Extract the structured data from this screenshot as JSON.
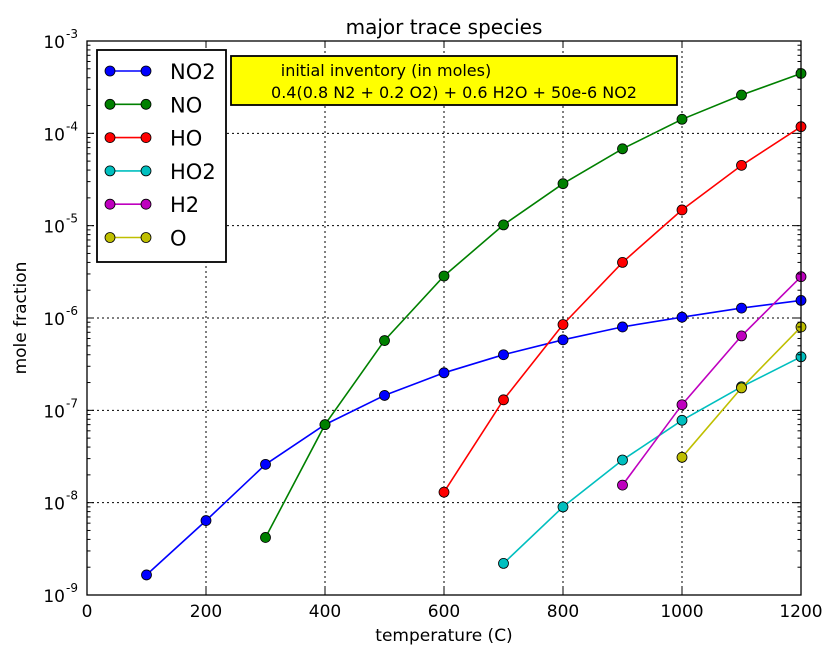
{
  "chart_data": {
    "type": "line",
    "title": "major trace species",
    "xlabel": "temperature (C)",
    "ylabel": "mole fraction",
    "xlim": [
      0,
      1200
    ],
    "ylim": [
      1e-09,
      0.001
    ],
    "yscale": "log",
    "grid": true,
    "legend_position": "top-left",
    "x_ticks": [
      0,
      200,
      400,
      600,
      800,
      1000,
      1200
    ],
    "x_tick_labels": [
      "0",
      "200",
      "400",
      "600",
      "800",
      "1000",
      "1200"
    ],
    "y_ticks": [
      1e-09,
      1e-08,
      1e-07,
      1e-06,
      1e-05,
      0.0001,
      0.001
    ],
    "y_tick_labels": [
      {
        "base": "10",
        "exp": "-9"
      },
      {
        "base": "10",
        "exp": "-8"
      },
      {
        "base": "10",
        "exp": "-7"
      },
      {
        "base": "10",
        "exp": "-6"
      },
      {
        "base": "10",
        "exp": "-5"
      },
      {
        "base": "10",
        "exp": "-4"
      },
      {
        "base": "10",
        "exp": "-3"
      }
    ],
    "annotation": {
      "lines": [
        "initial inventory (in moles)",
        "0.4(0.8 N2 + 0.2 O2) + 0.6 H2O + 50e-6 NO2"
      ],
      "background": "#ffff00"
    },
    "series": [
      {
        "name": "NO2",
        "color": "#0000ff",
        "x": [
          100,
          200,
          300,
          400,
          500,
          600,
          700,
          800,
          900,
          1000,
          1100,
          1200
        ],
        "y": [
          1.65e-09,
          6.4e-09,
          2.6e-08,
          7e-08,
          1.45e-07,
          2.55e-07,
          4e-07,
          5.8e-07,
          8e-07,
          1.02e-06,
          1.28e-06,
          1.55e-06
        ]
      },
      {
        "name": "NO",
        "color": "#008000",
        "x": [
          300,
          400,
          500,
          600,
          700,
          800,
          900,
          1000,
          1100,
          1200
        ],
        "y": [
          4.2e-09,
          7e-08,
          5.7e-07,
          2.85e-06,
          1.02e-05,
          2.85e-05,
          6.8e-05,
          0.000142,
          0.00026,
          0.000445
        ]
      },
      {
        "name": "HO",
        "color": "#ff0000",
        "x": [
          600,
          700,
          800,
          900,
          1000,
          1100,
          1200
        ],
        "y": [
          1.3e-08,
          1.3e-07,
          8.5e-07,
          4e-06,
          1.48e-05,
          4.5e-05,
          0.000118
        ]
      },
      {
        "name": "HO2",
        "color": "#00bfbf",
        "x": [
          700,
          800,
          900,
          1000,
          1100,
          1200
        ],
        "y": [
          2.2e-09,
          9e-09,
          2.9e-08,
          7.8e-08,
          1.8e-07,
          3.8e-07
        ]
      },
      {
        "name": "H2",
        "color": "#bf00bf",
        "x": [
          900,
          1000,
          1100,
          1200
        ],
        "y": [
          1.55e-08,
          1.15e-07,
          6.4e-07,
          2.8e-06
        ]
      },
      {
        "name": "O",
        "color": "#bfbf00",
        "x": [
          1000,
          1100,
          1200
        ],
        "y": [
          3.1e-08,
          1.75e-07,
          8e-07
        ]
      }
    ]
  }
}
